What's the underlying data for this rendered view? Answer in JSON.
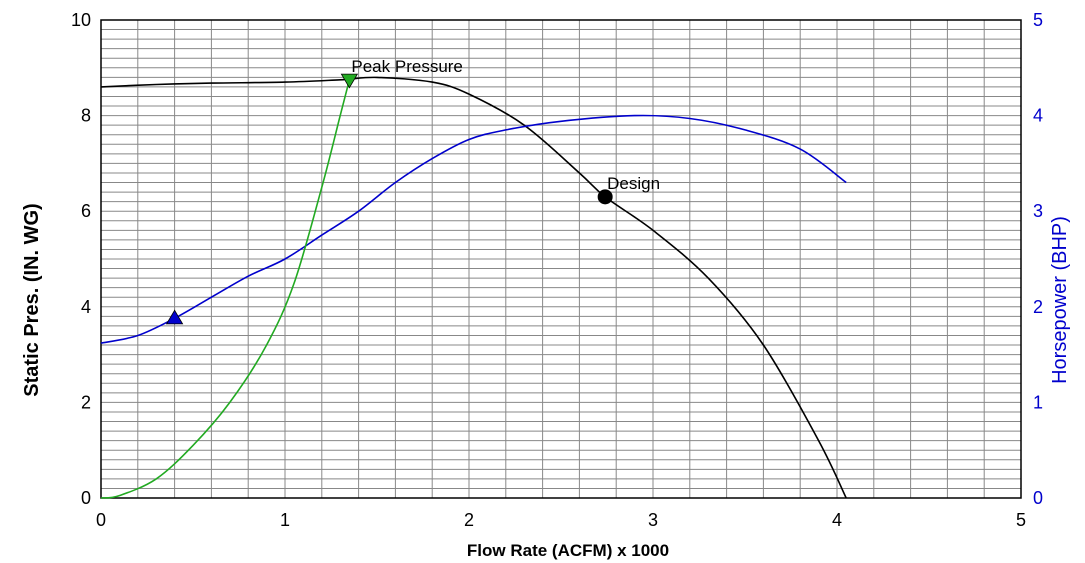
{
  "chart_data": {
    "type": "line",
    "title": "",
    "xlabel": "Flow Rate (ACFM) x 1000",
    "ylabel": "Static Pres. (IN. WG)",
    "y2label": "Horsepower (BHP)",
    "xlim": [
      0,
      5
    ],
    "ylim": [
      0,
      10
    ],
    "y2lim": [
      0,
      5
    ],
    "grid": true,
    "legend": "none",
    "x_ticks": [
      "0",
      "1",
      "2",
      "3",
      "4",
      "5"
    ],
    "y_ticks": [
      "0",
      "2",
      "4",
      "6",
      "8",
      "10"
    ],
    "y2_ticks": [
      "0",
      "1",
      "2",
      "3",
      "4",
      "5"
    ],
    "y2_tick_color": "#0000cc",
    "series": [
      {
        "color": "#000000",
        "axis": "left",
        "points": [
          [
            0,
            8.6
          ],
          [
            0.3,
            8.65
          ],
          [
            0.6,
            8.68
          ],
          [
            1.0,
            8.7
          ],
          [
            1.3,
            8.75
          ],
          [
            1.5,
            8.8
          ],
          [
            1.8,
            8.7
          ],
          [
            2.0,
            8.45
          ],
          [
            2.3,
            7.8
          ],
          [
            2.6,
            6.8
          ],
          [
            2.74,
            6.3
          ],
          [
            3.0,
            5.6
          ],
          [
            3.3,
            4.6
          ],
          [
            3.6,
            3.2
          ],
          [
            3.9,
            1.2
          ],
          [
            4.05,
            0
          ]
        ]
      },
      {
        "color": "#0000cc",
        "axis": "right",
        "points": [
          [
            0,
            1.62
          ],
          [
            0.2,
            1.7
          ],
          [
            0.4,
            1.88
          ],
          [
            0.6,
            2.1
          ],
          [
            0.8,
            2.32
          ],
          [
            1.0,
            2.5
          ],
          [
            1.2,
            2.75
          ],
          [
            1.4,
            3.0
          ],
          [
            1.6,
            3.3
          ],
          [
            1.8,
            3.55
          ],
          [
            2.0,
            3.75
          ],
          [
            2.2,
            3.85
          ],
          [
            2.5,
            3.94
          ],
          [
            2.9,
            4.0
          ],
          [
            3.2,
            3.97
          ],
          [
            3.5,
            3.85
          ],
          [
            3.8,
            3.65
          ],
          [
            4.05,
            3.3
          ]
        ]
      },
      {
        "color": "#22aa22",
        "axis": "left",
        "points": [
          [
            0,
            0
          ],
          [
            0.1,
            0.05
          ],
          [
            0.3,
            0.4
          ],
          [
            0.5,
            1.1
          ],
          [
            0.7,
            2.0
          ],
          [
            0.9,
            3.2
          ],
          [
            1.05,
            4.5
          ],
          [
            1.2,
            6.5
          ],
          [
            1.3,
            8.0
          ],
          [
            1.35,
            8.75
          ]
        ]
      }
    ],
    "annotations": [
      {
        "text": "Peak Pressure",
        "x": 1.35,
        "y": 8.75,
        "marker": "triangle-down",
        "color": "#22aa22"
      },
      {
        "text": "Design",
        "x": 2.74,
        "y": 6.3,
        "marker": "circle",
        "color": "#000000"
      }
    ],
    "markers": [
      {
        "x": 0.4,
        "y": 1.88,
        "axis": "right",
        "shape": "triangle-up",
        "color": "#0000cc"
      }
    ]
  }
}
